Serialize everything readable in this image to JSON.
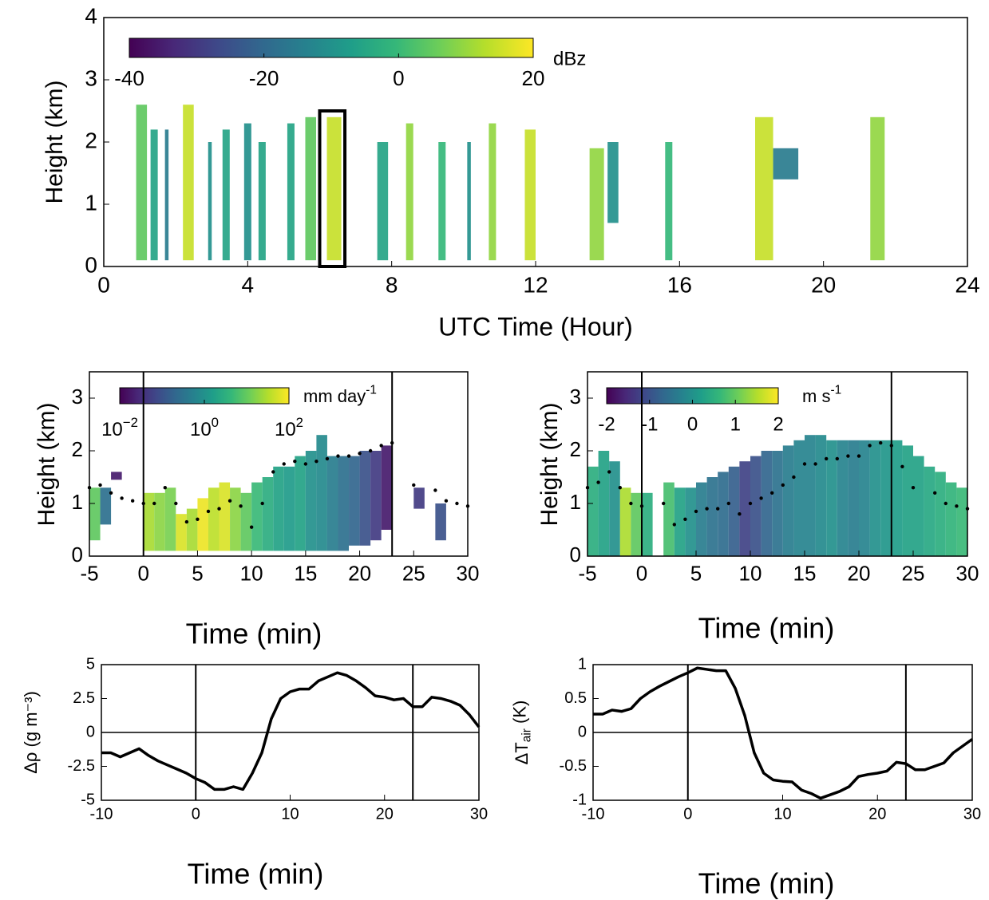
{
  "chart_data": [
    {
      "type": "heatmap",
      "xlabel": "UTC Time (Hour)",
      "ylabel": "Height (km)",
      "xlim": [
        0,
        24
      ],
      "xticks": [
        0,
        4,
        8,
        12,
        16,
        20,
        24
      ],
      "ylim": [
        0,
        4
      ],
      "yticks": [
        0,
        1,
        2,
        3,
        4
      ],
      "colorbar": {
        "label": "dBz",
        "lim": [
          -40,
          20
        ],
        "ticks": [
          -40,
          -20,
          0,
          20
        ],
        "log": false
      },
      "columns": {
        "start": [
          0.9,
          1.3,
          1.7,
          2.2,
          2.9,
          3.3,
          3.9,
          4.3,
          5.1,
          5.6,
          6.2,
          7.6,
          8.4,
          9.3,
          10.1,
          10.7,
          11.7,
          13.5,
          14.0,
          15.6,
          18.1,
          18.6,
          21.3
        ],
        "end": [
          1.2,
          1.5,
          1.8,
          2.5,
          3.0,
          3.5,
          4.1,
          4.5,
          5.3,
          5.9,
          6.6,
          7.9,
          8.6,
          9.5,
          10.2,
          10.9,
          12.0,
          13.9,
          14.3,
          15.8,
          18.6,
          19.3,
          21.7
        ],
        "bottom": [
          0.1,
          0.1,
          0.1,
          0.1,
          0.1,
          0.1,
          0.1,
          0.1,
          0.1,
          0.1,
          0.1,
          0.1,
          0.1,
          0.1,
          0.1,
          0.1,
          0.1,
          0.1,
          0.7,
          0.1,
          0.1,
          1.4,
          0.1
        ],
        "top": [
          2.6,
          2.2,
          2.2,
          2.6,
          2.0,
          2.2,
          2.3,
          2.0,
          2.3,
          2.4,
          2.4,
          2.0,
          2.3,
          2.0,
          2.0,
          2.3,
          2.2,
          1.9,
          2.0,
          2.0,
          2.4,
          1.9,
          2.4
        ],
        "values": [
          5,
          -5,
          -15,
          15,
          -10,
          -5,
          -10,
          -5,
          -5,
          5,
          15,
          -5,
          10,
          0,
          -10,
          10,
          15,
          10,
          -10,
          0,
          15,
          -15,
          10
        ]
      },
      "highlight": {
        "x": [
          6.0,
          6.7
        ],
        "y": [
          0,
          2.5
        ]
      }
    },
    {
      "type": "heatmap",
      "xlabel": "Time (min)",
      "ylabel": "Height (km)",
      "xlim": [
        -5,
        30
      ],
      "xticks": [
        -5,
        0,
        5,
        10,
        15,
        20,
        25,
        30
      ],
      "ylim": [
        0,
        3.5
      ],
      "yticks": [
        0,
        1,
        2,
        3
      ],
      "colorbar": {
        "label": [
          "mm day",
          "-1"
        ],
        "lim": [
          0.01,
          100
        ],
        "log": true,
        "ticks": [
          {
            "value": 0.01,
            "label": [
              "10",
              "−2"
            ]
          },
          {
            "value": 1,
            "label": [
              "10",
              "0"
            ]
          },
          {
            "value": 100,
            "label": [
              "10",
              "2"
            ]
          }
        ]
      },
      "columns": {
        "start": [
          -5,
          -4,
          -3,
          0,
          1,
          2,
          3,
          4,
          5,
          6,
          7,
          8,
          9,
          10,
          11,
          12,
          13,
          14,
          15,
          16,
          17,
          18,
          19,
          20,
          21,
          22,
          25,
          27
        ],
        "end": [
          -4,
          -3,
          -2,
          1,
          2,
          3,
          4,
          5,
          6,
          7,
          8,
          9,
          10,
          11,
          12,
          13,
          14,
          15,
          16,
          17,
          18,
          19,
          20,
          21,
          22,
          23,
          26,
          28
        ],
        "bottom": [
          0.3,
          0.6,
          1.45,
          0.1,
          0.1,
          0.1,
          0.1,
          0.1,
          0.1,
          0.1,
          0.1,
          0.1,
          0.1,
          0.1,
          0.1,
          0.1,
          0.1,
          0.1,
          0.1,
          0.1,
          0.1,
          0.1,
          0.2,
          0.2,
          0.3,
          0.5,
          0.9,
          0.3
        ],
        "top": [
          1.3,
          1.3,
          1.6,
          1.2,
          1.2,
          1.3,
          0.8,
          0.9,
          1.1,
          1.3,
          1.4,
          1.3,
          1.2,
          1.4,
          1.5,
          1.7,
          1.7,
          1.9,
          2.0,
          2.3,
          1.9,
          1.9,
          1.9,
          2.0,
          2.0,
          2.1,
          1.3,
          1.0
        ],
        "values": [
          10,
          0.3,
          0.02,
          30,
          20,
          15,
          60,
          30,
          80,
          40,
          60,
          20,
          10,
          5,
          3,
          2,
          1.5,
          2,
          1,
          0.8,
          0.5,
          0.3,
          0.2,
          0.1,
          0.05,
          0.02,
          0.05,
          0.1
        ]
      },
      "cloud_base": {
        "x": [
          -5,
          -4,
          -3,
          -2,
          -1,
          0,
          1,
          2,
          3,
          4,
          5,
          6,
          7,
          8,
          9,
          10,
          11,
          12,
          13,
          14,
          15,
          16,
          17,
          18,
          19,
          20,
          21,
          22,
          23,
          25,
          27,
          28,
          29,
          30
        ],
        "y": [
          1.3,
          1.35,
          1.2,
          1.1,
          1.05,
          1.0,
          1.0,
          1.3,
          1.0,
          0.65,
          0.7,
          0.85,
          0.9,
          1.05,
          0.95,
          0.55,
          1.0,
          1.6,
          1.75,
          1.8,
          1.75,
          1.8,
          1.85,
          1.9,
          1.9,
          1.95,
          2.0,
          2.1,
          2.15,
          1.35,
          1.25,
          1.05,
          1.0,
          0.95
        ]
      },
      "vlines": [
        0,
        23
      ]
    },
    {
      "type": "heatmap",
      "xlabel": "Time (min)",
      "ylabel": "Height (km)",
      "xlim": [
        -5,
        30
      ],
      "xticks": [
        -5,
        0,
        5,
        10,
        15,
        20,
        25,
        30
      ],
      "ylim": [
        0,
        3.5
      ],
      "yticks": [
        0,
        1,
        2,
        3
      ],
      "colorbar": {
        "label": [
          "m s",
          "-1"
        ],
        "lim": [
          -2,
          2
        ],
        "ticks": [
          -2,
          -1,
          0,
          1,
          2
        ],
        "log": false
      },
      "columns": {
        "start": [
          -5,
          -4,
          -3,
          -2,
          -1,
          0,
          2,
          3,
          4,
          5,
          6,
          7,
          8,
          9,
          10,
          11,
          12,
          13,
          14,
          15,
          16,
          17,
          18,
          19,
          20,
          21,
          22,
          23,
          24,
          25,
          26,
          27,
          28,
          29
        ],
        "end": [
          -4,
          -3,
          -2,
          -1,
          0,
          1,
          3,
          4,
          5,
          6,
          7,
          8,
          9,
          10,
          11,
          12,
          13,
          14,
          15,
          16,
          17,
          18,
          19,
          20,
          21,
          22,
          23,
          24,
          25,
          26,
          27,
          28,
          29,
          30
        ],
        "bottom": [
          0,
          0,
          0,
          0,
          0,
          0,
          0,
          0,
          0,
          0,
          0,
          0,
          0,
          0,
          0,
          0,
          0,
          0,
          0,
          0,
          0,
          0,
          0,
          0,
          0,
          0,
          0,
          0,
          0,
          0,
          0,
          0,
          0,
          0
        ],
        "top": [
          1.7,
          2.0,
          1.8,
          1.3,
          1.2,
          1.2,
          1.4,
          1.3,
          1.3,
          1.4,
          1.5,
          1.6,
          1.7,
          1.8,
          1.9,
          2.0,
          2.0,
          2.1,
          2.2,
          2.3,
          2.3,
          2.2,
          2.2,
          2.2,
          2.2,
          2.2,
          2.2,
          2.2,
          2.1,
          1.9,
          1.7,
          1.6,
          1.4,
          1.3
        ],
        "values": [
          0.5,
          0.3,
          0,
          1.5,
          1.0,
          0.5,
          0.8,
          0.3,
          0,
          -0.3,
          -0.5,
          -0.6,
          -0.8,
          -1.2,
          -1.0,
          -0.7,
          -0.5,
          -0.3,
          -0.2,
          -0.2,
          -0.1,
          0,
          -0.2,
          -0.3,
          -0.2,
          0,
          0.1,
          0.2,
          0.3,
          0.3,
          0.4,
          0.5,
          0.6,
          0.7
        ]
      },
      "cloud_base": {
        "x": [
          -5,
          -4,
          -3,
          -2,
          -1,
          0,
          2,
          3,
          4,
          5,
          6,
          7,
          8,
          9,
          10,
          11,
          12,
          13,
          14,
          15,
          16,
          17,
          18,
          19,
          20,
          21,
          22,
          23,
          24,
          25,
          27,
          28,
          29,
          30
        ],
        "y": [
          1.3,
          1.4,
          1.6,
          1.3,
          1.0,
          0.95,
          1.0,
          0.6,
          0.7,
          0.85,
          0.9,
          0.9,
          1.0,
          0.8,
          1.0,
          1.1,
          1.2,
          1.35,
          1.5,
          1.75,
          1.75,
          1.85,
          1.85,
          1.9,
          1.9,
          2.1,
          2.15,
          2.1,
          1.7,
          1.3,
          1.2,
          1.0,
          0.95,
          0.9
        ]
      },
      "vlines": [
        0,
        23
      ]
    },
    {
      "type": "line",
      "xlabel": "Time (min)",
      "ylabel": "Δρ (g m⁻³)",
      "xlim": [
        -10,
        30
      ],
      "xticks": [
        -10,
        0,
        10,
        20,
        30
      ],
      "ylim": [
        -5,
        5
      ],
      "yticks": [
        -5,
        -2.5,
        0,
        2.5,
        5
      ],
      "x": [
        -10,
        -9,
        -8,
        -7,
        -6,
        -5,
        -4,
        -3,
        -2,
        -1,
        0,
        1,
        2,
        3,
        4,
        5,
        6,
        7,
        8,
        9,
        10,
        11,
        12,
        13,
        14,
        15,
        16,
        17,
        18,
        19,
        20,
        21,
        22,
        23,
        24,
        25,
        26,
        27,
        28,
        29,
        30
      ],
      "values": [
        -1.5,
        -1.5,
        -1.8,
        -1.5,
        -1.2,
        -1.7,
        -2.1,
        -2.4,
        -2.7,
        -3.0,
        -3.4,
        -3.7,
        -4.2,
        -4.2,
        -4.0,
        -4.2,
        -3.0,
        -1.5,
        1.0,
        2.5,
        3.0,
        3.2,
        3.2,
        3.8,
        4.1,
        4.4,
        4.2,
        3.8,
        3.3,
        2.7,
        2.6,
        2.4,
        2.5,
        1.9,
        1.9,
        2.6,
        2.5,
        2.3,
        2.0,
        1.3,
        0.4
      ],
      "hlines": [
        0
      ],
      "vlines": [
        0,
        23
      ]
    },
    {
      "type": "line",
      "xlabel": "Time (min)",
      "ylabel": [
        "ΔT",
        "air",
        " (K)"
      ],
      "xlim": [
        -10,
        30
      ],
      "xticks": [
        -10,
        0,
        10,
        20,
        30
      ],
      "ylim": [
        -1,
        1
      ],
      "yticks": [
        -1,
        -0.5,
        0,
        0.5,
        1
      ],
      "x": [
        -10,
        -9,
        -8,
        -7,
        -6,
        -5,
        -4,
        -3,
        -2,
        -1,
        0,
        1,
        2,
        3,
        4,
        5,
        6,
        7,
        8,
        9,
        10,
        11,
        12,
        13,
        14,
        15,
        16,
        17,
        18,
        19,
        20,
        21,
        22,
        23,
        24,
        25,
        26,
        27,
        28,
        29,
        30
      ],
      "values": [
        0.27,
        0.27,
        0.33,
        0.31,
        0.35,
        0.5,
        0.6,
        0.68,
        0.75,
        0.82,
        0.88,
        0.95,
        0.93,
        0.91,
        0.91,
        0.65,
        0.25,
        -0.3,
        -0.6,
        -0.7,
        -0.72,
        -0.73,
        -0.85,
        -0.9,
        -0.97,
        -0.92,
        -0.87,
        -0.8,
        -0.65,
        -0.62,
        -0.6,
        -0.57,
        -0.44,
        -0.46,
        -0.55,
        -0.55,
        -0.5,
        -0.45,
        -0.3,
        -0.2,
        -0.1
      ],
      "hlines": [
        0
      ],
      "vlines": [
        0,
        23
      ]
    }
  ]
}
